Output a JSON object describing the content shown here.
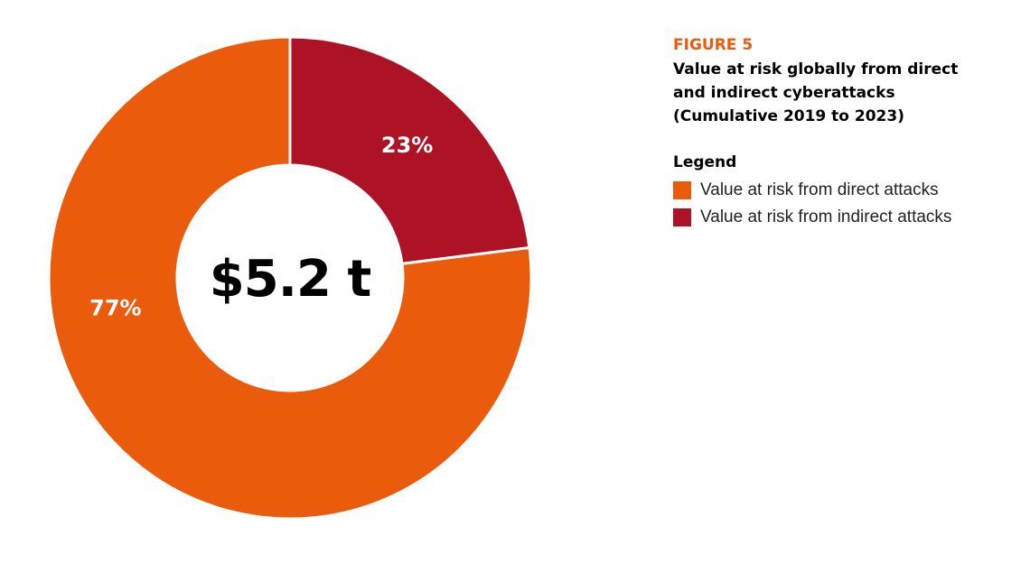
{
  "figure": {
    "label": "FIGURE 5",
    "title_lines": [
      "Value at risk globally from direct",
      "and indirect cyberattacks",
      "(Cumulative 2019 to 2023)"
    ]
  },
  "legend": {
    "heading": "Legend"
  },
  "colors": {
    "direct": "#ea5b0c",
    "indirect": "#ad1225",
    "accent": "#ea5b0c"
  },
  "chart_data": {
    "type": "pie",
    "donut": true,
    "center_label": "$5.2 t",
    "slices": [
      {
        "name": "Value at risk from direct attacks",
        "value": 77,
        "label": "77%",
        "color": "#ea5b0c"
      },
      {
        "name": "Value at risk from indirect attacks",
        "value": 23,
        "label": "23%",
        "color": "#ad1225"
      }
    ],
    "legend_position": "right"
  }
}
